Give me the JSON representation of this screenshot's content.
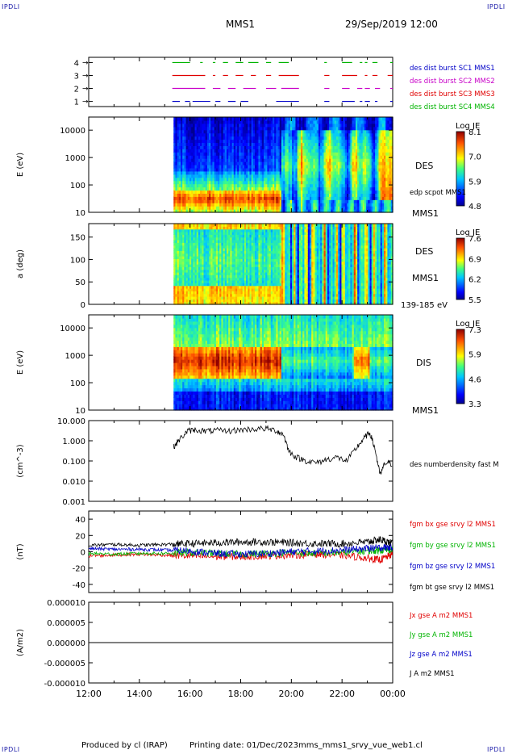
{
  "header": {
    "corner_label": "IPDLI",
    "mission": "MMS1",
    "datetime": "29/Sep/2019 12:00"
  },
  "footer": {
    "produced": "Produced by cl (IRAP)",
    "printing": "Printing date: 01/Dec/2023",
    "file": "mms_mms1_srvy_vue_web1.cl"
  },
  "time_axis": {
    "ticks": [
      "12:00",
      "14:00",
      "16:00",
      "18:00",
      "20:00",
      "22:00",
      "00:00"
    ],
    "range_hours": [
      12,
      24
    ]
  },
  "colors": {
    "blue": "#0000c8",
    "magenta": "#c800c8",
    "red": "#e00000",
    "green": "#00b400",
    "black": "#000000"
  },
  "chart_data": [
    {
      "type": "line",
      "panel": "burst availability",
      "yticks": [
        "1",
        "2",
        "3",
        "4"
      ],
      "ylim": [
        0.6,
        4.4
      ],
      "series": [
        {
          "name": "des dist burst SC1 MMS1",
          "level": 1,
          "color": "#0000c8",
          "segments": [
            [
              15.3,
              15.6
            ],
            [
              15.8,
              16.0
            ],
            [
              16.1,
              16.8
            ],
            [
              17.0,
              17.2
            ],
            [
              17.5,
              17.8
            ],
            [
              18.0,
              18.3
            ],
            [
              19.4,
              20.3
            ],
            [
              21.3,
              21.5
            ],
            [
              22.0,
              22.5
            ],
            [
              22.7,
              22.8
            ],
            [
              22.9,
              23.1
            ],
            [
              23.3,
              23.4
            ],
            [
              23.9,
              24.0
            ]
          ]
        },
        {
          "name": "des dist burst SC2 MMS2",
          "level": 2,
          "color": "#c800c8",
          "segments": [
            [
              15.3,
              16.6
            ],
            [
              16.9,
              17.2
            ],
            [
              17.5,
              17.8
            ],
            [
              18.1,
              18.6
            ],
            [
              19.0,
              19.4
            ],
            [
              19.6,
              20.3
            ],
            [
              21.3,
              21.5
            ],
            [
              22.0,
              22.3
            ],
            [
              22.6,
              22.8
            ],
            [
              22.9,
              23.1
            ],
            [
              23.3,
              23.5
            ],
            [
              23.9,
              24.0
            ]
          ]
        },
        {
          "name": "des dist burst SC3 MMS3",
          "level": 3,
          "color": "#e00000",
          "segments": [
            [
              15.3,
              16.6
            ],
            [
              16.9,
              17.0
            ],
            [
              17.3,
              17.5
            ],
            [
              17.8,
              18.1
            ],
            [
              18.4,
              18.6
            ],
            [
              19.0,
              19.2
            ],
            [
              19.5,
              20.3
            ],
            [
              21.3,
              21.5
            ],
            [
              22.0,
              22.6
            ],
            [
              22.9,
              23.0
            ],
            [
              23.2,
              23.4
            ],
            [
              23.8,
              24.0
            ]
          ]
        },
        {
          "name": "des dist burst SC4 MMS4",
          "level": 4,
          "color": "#00b400",
          "segments": [
            [
              15.3,
              16.0
            ],
            [
              16.4,
              16.5
            ],
            [
              16.9,
              17.0
            ],
            [
              17.3,
              17.5
            ],
            [
              17.8,
              18.1
            ],
            [
              18.3,
              18.7
            ],
            [
              19.0,
              19.2
            ],
            [
              19.5,
              19.9
            ],
            [
              21.3,
              21.4
            ],
            [
              22.0,
              22.4
            ],
            [
              22.7,
              22.8
            ],
            [
              22.9,
              23.0
            ],
            [
              23.2,
              23.4
            ],
            [
              23.9,
              24.0
            ]
          ]
        }
      ]
    },
    {
      "type": "heatmap",
      "panel": "electron energy spectrogram",
      "ylabel": "E (eV)",
      "yscale": "log",
      "ylim": [
        10,
        30000
      ],
      "yticks": [
        "10",
        "100",
        "1000",
        "10000"
      ],
      "data_start_hour": 15.35,
      "colorbar": {
        "title": "Log JE",
        "ticks": [
          "8.1",
          "7.0",
          "5.9",
          "4.8"
        ],
        "min": 4.8,
        "max": 8.1
      },
      "right_labels": [
        "DES",
        "edp scpot MMS1",
        "MMS1"
      ]
    },
    {
      "type": "heatmap",
      "panel": "electron pitch angle",
      "ylabel": "a (deg)",
      "ylim": [
        0,
        180
      ],
      "yticks": [
        "0",
        "50",
        "100",
        "150"
      ],
      "data_start_hour": 15.35,
      "colorbar": {
        "title": "Log JE",
        "ticks": [
          "7.6",
          "6.9",
          "6.2",
          "5.5"
        ],
        "min": 5.5,
        "max": 7.6
      },
      "right_labels": [
        "DES",
        "MMS1",
        "139-185 eV"
      ]
    },
    {
      "type": "heatmap",
      "panel": "ion energy spectrogram",
      "ylabel": "E (eV)",
      "yscale": "log",
      "ylim": [
        10,
        30000
      ],
      "yticks": [
        "10",
        "100",
        "1000",
        "10000"
      ],
      "data_start_hour": 15.35,
      "colorbar": {
        "title": "Log JE",
        "ticks": [
          "7.3",
          "5.9",
          "4.6",
          "3.3"
        ],
        "min": 3.3,
        "max": 7.3
      },
      "right_labels": [
        "DIS",
        "MMS1"
      ]
    },
    {
      "type": "line",
      "panel": "number density",
      "ylabel": "(cm^-3)",
      "yscale": "log",
      "ylim": [
        0.001,
        10
      ],
      "yticks": [
        "0.001",
        "0.010",
        "0.100",
        "1.000",
        "10.000"
      ],
      "x": [
        15.35,
        15.6,
        15.9,
        16.2,
        16.6,
        17.0,
        17.5,
        18.0,
        18.5,
        19.0,
        19.4,
        19.7,
        19.9,
        20.2,
        20.6,
        21.0,
        21.4,
        21.8,
        22.2,
        22.6,
        22.9,
        23.1,
        23.3,
        23.5,
        23.7,
        24.0
      ],
      "series": [
        {
          "name": "des numberdensity fast M",
          "color": "#000000",
          "values": [
            0.5,
            1.2,
            3.0,
            3.5,
            3.0,
            3.2,
            3.0,
            3.5,
            3.8,
            4.0,
            3.2,
            2.0,
            0.3,
            0.15,
            0.1,
            0.08,
            0.12,
            0.15,
            0.1,
            0.5,
            1.5,
            2.5,
            0.4,
            0.02,
            0.08,
            0.07
          ]
        }
      ]
    },
    {
      "type": "line",
      "panel": "magnetic field",
      "ylabel": "(nT)",
      "ylim": [
        -50,
        50
      ],
      "yticks": [
        "-40",
        "-20",
        "0",
        "20",
        "40"
      ],
      "x": [
        12.0,
        13.0,
        14.0,
        15.0,
        16.0,
        17.0,
        18.0,
        19.0,
        20.0,
        21.0,
        22.0,
        23.0,
        23.5,
        24.0
      ],
      "series": [
        {
          "name": "fgm bx gse srvy l2 MMS1",
          "color": "#e00000",
          "values": [
            -5,
            -4,
            -3,
            -4,
            -5,
            -6,
            -6,
            -5,
            -4,
            -3,
            -4,
            -8,
            -10,
            -3
          ]
        },
        {
          "name": "fgm by gse srvy l2 MMS1",
          "color": "#00b400",
          "values": [
            -2,
            -3,
            -2,
            -2,
            -1,
            -2,
            -3,
            -2,
            -1,
            -2,
            -1,
            1,
            2,
            3
          ]
        },
        {
          "name": "fgm bz gse srvy l2 MMS1",
          "color": "#0000c8",
          "values": [
            4,
            3,
            3,
            2,
            1,
            -2,
            -3,
            -2,
            0,
            1,
            2,
            4,
            5,
            6
          ]
        },
        {
          "name": "fgm bt gse srvy l2 MMS1",
          "color": "#000000",
          "values": [
            8,
            9,
            8,
            9,
            10,
            11,
            12,
            12,
            11,
            10,
            10,
            12,
            15,
            10
          ]
        }
      ]
    },
    {
      "type": "line",
      "panel": "current density",
      "ylabel": "(A/m2)",
      "ylim": [
        -1e-05,
        1e-05
      ],
      "yticks": [
        "-0.000010",
        "-0.000005",
        "0.000000",
        "0.000005",
        "0.000010"
      ],
      "xlabel_ticks": [
        "12:00",
        "14:00",
        "16:00",
        "18:00",
        "20:00",
        "22:00",
        "00:00"
      ],
      "series": [
        {
          "name": "Jx gse A m2 MMS1",
          "color": "#e00000",
          "values": [
            0,
            0
          ]
        },
        {
          "name": "Jy gse A m2 MMS1",
          "color": "#00b400",
          "values": [
            0,
            0
          ]
        },
        {
          "name": "Jz gse A m2 MMS1",
          "color": "#0000c8",
          "values": [
            0,
            0
          ]
        },
        {
          "name": "J A m2 MMS1",
          "color": "#000000",
          "values": [
            0,
            0
          ]
        }
      ]
    }
  ]
}
